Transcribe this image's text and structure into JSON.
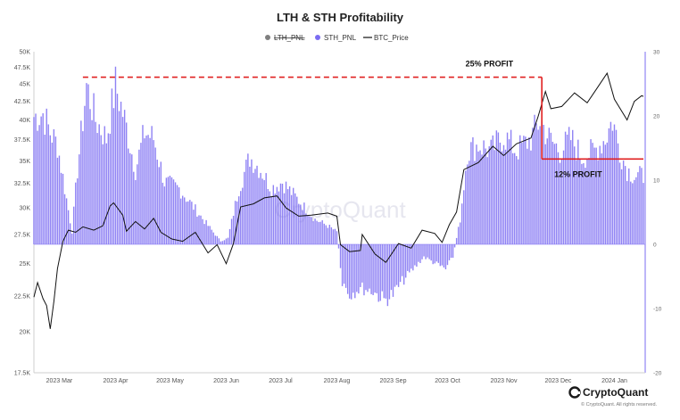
{
  "chart_data": {
    "type": "bar",
    "title": "LTH & STH Profitability",
    "legend": [
      {
        "name": "LTH_PNL",
        "color": "#7f7f7f",
        "marker": "dot",
        "struck": true
      },
      {
        "name": "STH_PNL",
        "color": "#7b6cf2",
        "marker": "dot",
        "struck": false
      },
      {
        "name": "BTC_Price",
        "color": "#111111",
        "marker": "line",
        "struck": false
      }
    ],
    "left_axis": {
      "min": 17500,
      "max": 50000,
      "scale": "log",
      "ticks": [
        17500,
        20000,
        22500,
        25000,
        27500,
        30000,
        32500,
        35000,
        37500,
        40000,
        42500,
        45000,
        47500,
        50000
      ],
      "tick_labels": [
        "17.5K",
        "20K",
        "22.5K",
        "25K",
        "27.5K",
        "30K",
        "32.5K",
        "35K",
        "37.5K",
        "40K",
        "42.5K",
        "45K",
        "47.5K",
        "50K"
      ]
    },
    "right_axis": {
      "min": -20,
      "max": 30,
      "ticks": [
        -20,
        -10,
        0,
        10,
        20,
        30
      ],
      "tick_labels": [
        "-20",
        "-10",
        "0",
        "10",
        "20",
        "30"
      ]
    },
    "x_axis": {
      "start": "2023-03-01",
      "end": "2024-01-31",
      "ticks": [
        "2023-03-15",
        "2023-04-15",
        "2023-05-15",
        "2023-06-15",
        "2023-07-15",
        "2023-08-15",
        "2023-09-15",
        "2023-10-15",
        "2023-11-15",
        "2023-12-15",
        "2024-01-15"
      ],
      "tick_labels": [
        "2023 Mar",
        "2023 Apr",
        "2023 May",
        "2023 Jun",
        "2023 Jul",
        "2023 Aug",
        "2023 Sep",
        "2023 Oct",
        "2023 Nov",
        "2023 Dec",
        "2024 Jan"
      ]
    },
    "sth_pnl_keypoints": [
      [
        "2023-03-01",
        20.5
      ],
      [
        "2023-03-06",
        21
      ],
      [
        "2023-03-10",
        18
      ],
      [
        "2023-03-14",
        16
      ],
      [
        "2023-03-18",
        9
      ],
      [
        "2023-03-22",
        2
      ],
      [
        "2023-03-25",
        12
      ],
      [
        "2023-03-30",
        25.5
      ],
      [
        "2023-04-04",
        20
      ],
      [
        "2023-04-10",
        17
      ],
      [
        "2023-04-15",
        25.5
      ],
      [
        "2023-04-20",
        20
      ],
      [
        "2023-04-26",
        12
      ],
      [
        "2023-05-01",
        18
      ],
      [
        "2023-05-06",
        17
      ],
      [
        "2023-05-12",
        10
      ],
      [
        "2023-05-20",
        9
      ],
      [
        "2023-05-28",
        6
      ],
      [
        "2023-06-05",
        3
      ],
      [
        "2023-06-12",
        0.5
      ],
      [
        "2023-06-16",
        1
      ],
      [
        "2023-06-22",
        9
      ],
      [
        "2023-06-28",
        14
      ],
      [
        "2023-07-04",
        12
      ],
      [
        "2023-07-10",
        9
      ],
      [
        "2023-07-16",
        10
      ],
      [
        "2023-07-22",
        8
      ],
      [
        "2023-07-28",
        6
      ],
      [
        "2023-08-03",
        4
      ],
      [
        "2023-08-10",
        3
      ],
      [
        "2023-08-15",
        2
      ],
      [
        "2023-08-18",
        -6
      ],
      [
        "2023-08-22",
        -8
      ],
      [
        "2023-08-28",
        -7
      ],
      [
        "2023-09-04",
        -7.5
      ],
      [
        "2023-09-10",
        -9
      ],
      [
        "2023-09-15",
        -8
      ],
      [
        "2023-09-20",
        -6
      ],
      [
        "2023-09-26",
        -4
      ],
      [
        "2023-10-02",
        -2
      ],
      [
        "2023-10-08",
        -3
      ],
      [
        "2023-10-14",
        -4
      ],
      [
        "2023-10-18",
        -2
      ],
      [
        "2023-10-22",
        4
      ],
      [
        "2023-10-26",
        15
      ],
      [
        "2023-11-01",
        16
      ],
      [
        "2023-11-08",
        15
      ],
      [
        "2023-11-15",
        17.5
      ],
      [
        "2023-11-22",
        15
      ],
      [
        "2023-11-30",
        17
      ],
      [
        "2023-12-05",
        20
      ],
      [
        "2023-12-10",
        17
      ],
      [
        "2023-12-16",
        15
      ],
      [
        "2023-12-22",
        17
      ],
      [
        "2023-12-28",
        14
      ],
      [
        "2024-01-04",
        15
      ],
      [
        "2024-01-10",
        17
      ],
      [
        "2024-01-14",
        20
      ],
      [
        "2024-01-18",
        15
      ],
      [
        "2024-01-22",
        12
      ],
      [
        "2024-01-26",
        11
      ],
      [
        "2024-01-31",
        11
      ]
    ],
    "btc_price_keypoints": [
      [
        "2023-03-01",
        22400
      ],
      [
        "2023-03-03",
        23500
      ],
      [
        "2023-03-06",
        22300
      ],
      [
        "2023-03-08",
        21800
      ],
      [
        "2023-03-10",
        20200
      ],
      [
        "2023-03-12",
        22100
      ],
      [
        "2023-03-14",
        24600
      ],
      [
        "2023-03-17",
        26900
      ],
      [
        "2023-03-20",
        27900
      ],
      [
        "2023-03-24",
        27700
      ],
      [
        "2023-03-28",
        28200
      ],
      [
        "2023-04-03",
        27900
      ],
      [
        "2023-04-08",
        28300
      ],
      [
        "2023-04-12",
        30200
      ],
      [
        "2023-04-14",
        30500
      ],
      [
        "2023-04-19",
        29300
      ],
      [
        "2023-04-21",
        27800
      ],
      [
        "2023-04-26",
        28700
      ],
      [
        "2023-05-01",
        28000
      ],
      [
        "2023-05-06",
        29000
      ],
      [
        "2023-05-10",
        27700
      ],
      [
        "2023-05-16",
        27100
      ],
      [
        "2023-05-22",
        26900
      ],
      [
        "2023-05-29",
        27700
      ],
      [
        "2023-06-05",
        25900
      ],
      [
        "2023-06-10",
        26600
      ],
      [
        "2023-06-15",
        25000
      ],
      [
        "2023-06-19",
        26700
      ],
      [
        "2023-06-21",
        28400
      ],
      [
        "2023-06-23",
        30100
      ],
      [
        "2023-06-30",
        30400
      ],
      [
        "2023-07-06",
        31000
      ],
      [
        "2023-07-13",
        31200
      ],
      [
        "2023-07-18",
        30000
      ],
      [
        "2023-07-25",
        29200
      ],
      [
        "2023-08-01",
        29300
      ],
      [
        "2023-08-10",
        29500
      ],
      [
        "2023-08-15",
        29200
      ],
      [
        "2023-08-17",
        26600
      ],
      [
        "2023-08-22",
        26000
      ],
      [
        "2023-08-28",
        26100
      ],
      [
        "2023-08-29",
        27500
      ],
      [
        "2023-09-05",
        25800
      ],
      [
        "2023-09-11",
        25100
      ],
      [
        "2023-09-18",
        26700
      ],
      [
        "2023-09-25",
        26300
      ],
      [
        "2023-10-01",
        27900
      ],
      [
        "2023-10-08",
        27600
      ],
      [
        "2023-10-12",
        26800
      ],
      [
        "2023-10-16",
        28400
      ],
      [
        "2023-10-20",
        29600
      ],
      [
        "2023-10-24",
        34000
      ],
      [
        "2023-11-01",
        34800
      ],
      [
        "2023-11-09",
        36700
      ],
      [
        "2023-11-15",
        35600
      ],
      [
        "2023-11-22",
        37000
      ],
      [
        "2023-11-30",
        37700
      ],
      [
        "2023-12-04",
        40500
      ],
      [
        "2023-12-08",
        43900
      ],
      [
        "2023-12-11",
        41500
      ],
      [
        "2023-12-17",
        41800
      ],
      [
        "2023-12-24",
        43700
      ],
      [
        "2023-12-31",
        42300
      ],
      [
        "2024-01-05",
        44200
      ],
      [
        "2024-01-11",
        46600
      ],
      [
        "2024-01-15",
        42800
      ],
      [
        "2024-01-22",
        40000
      ],
      [
        "2024-01-26",
        42500
      ],
      [
        "2024-01-30",
        43300
      ],
      [
        "2024-01-31",
        43200
      ]
    ],
    "annotations": [
      {
        "label": "25% PROFIT",
        "type": "dashed-line",
        "color": "#e02020",
        "from": "2023-03-28",
        "to": "2023-12-06",
        "price": 46000
      },
      {
        "label": "12% PROFIT",
        "type": "bracket",
        "color": "#e02020",
        "x": "2023-12-06",
        "price_top": 46000,
        "price_bottom": 35200,
        "to": "2024-01-31"
      }
    ],
    "watermark": "CryptoQuant",
    "brand": "CryptoQuant",
    "copyright": "© CryptoQuant. All rights reserved."
  }
}
